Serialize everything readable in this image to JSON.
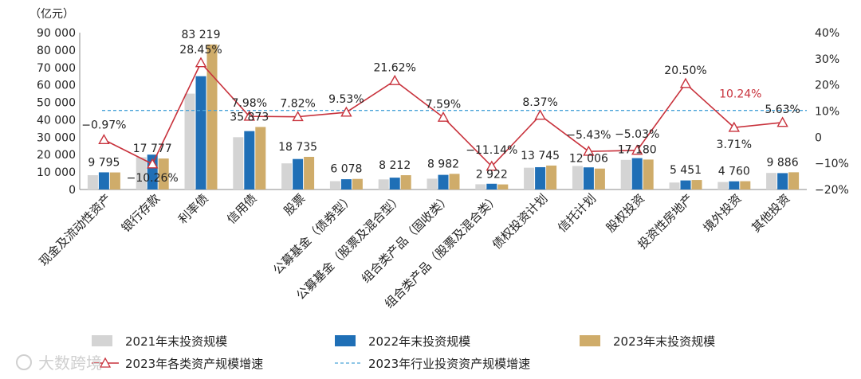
{
  "chart_data": {
    "type": "bar",
    "title": "",
    "ylabel": "（亿元）",
    "ylim": [
      0,
      90000
    ],
    "y2lim": [
      -20,
      40
    ],
    "yticks": [
      "90 000",
      "80 000",
      "70 000",
      "60 000",
      "50 000",
      "40 000",
      "30 000",
      "20 000",
      "10 000",
      "0"
    ],
    "y2ticks": [
      "40%",
      "30%",
      "20%",
      "10%",
      "0",
      "−10%",
      "−20%"
    ],
    "categories": [
      "现金及流动性资产",
      "银行存款",
      "利率债",
      "信用债",
      "股票",
      "公募基金（债券型）",
      "公募基金（股票及混合型）",
      "组合类产品（固收类）",
      "组合类产品（股票及混合类）",
      "债权投资计划",
      "信托计划",
      "股权投资",
      "投资性房地产",
      "境外投资",
      "其他投资"
    ],
    "series": [
      {
        "name": "2021年末投资规模",
        "color": "#d4d4d4",
        "values": [
          8200,
          18500,
          55000,
          30000,
          15000,
          4800,
          5800,
          6200,
          3000,
          12500,
          13500,
          17000,
          4000,
          4300,
          9500
        ]
      },
      {
        "name": "2022年末投资规模",
        "color": "#1f6fb6",
        "values": [
          9850,
          20000,
          65000,
          33500,
          17500,
          5900,
          6800,
          8400,
          3300,
          12800,
          12700,
          18000,
          5200,
          4700,
          9400
        ]
      },
      {
        "name": "2023年末投资规模",
        "color": "#cfac6a",
        "values": [
          9795,
          17777,
          83219,
          35873,
          18735,
          6078,
          8212,
          8982,
          2922,
          13745,
          12006,
          17180,
          5451,
          4760,
          9886
        ]
      }
    ],
    "value_labels": [
      "9 795",
      "17 777",
      "83 219",
      "35 873",
      "18 735",
      "6 078",
      "8 212",
      "8 982",
      "2 922",
      "13 745",
      "12 006",
      "17 180",
      "5 451",
      "4 760",
      "9 886"
    ],
    "line": {
      "name": "2023年各类资产规模增速",
      "color": "#c8323c",
      "values": [
        -0.97,
        -10.26,
        28.45,
        7.98,
        7.82,
        9.53,
        21.62,
        7.59,
        -11.14,
        8.37,
        -5.43,
        -5.03,
        20.5,
        3.71,
        5.63
      ],
      "labels": [
        "−0.97%",
        "−10.26%",
        "28.45%",
        "7.98%",
        "7.82%",
        "9.53%",
        "21.62%",
        "7.59%",
        "−11.14%",
        "8.37%",
        "−5.43%",
        "−5.03%",
        "20.50%",
        "3.71%",
        "5.63%"
      ]
    },
    "reference": {
      "name": "2023年行业投资资产规模增速",
      "value": 10.24,
      "label": "10.24%",
      "color": "#4aa3d8",
      "label_color": "#c8323c"
    }
  },
  "watermark": "大数跨境"
}
